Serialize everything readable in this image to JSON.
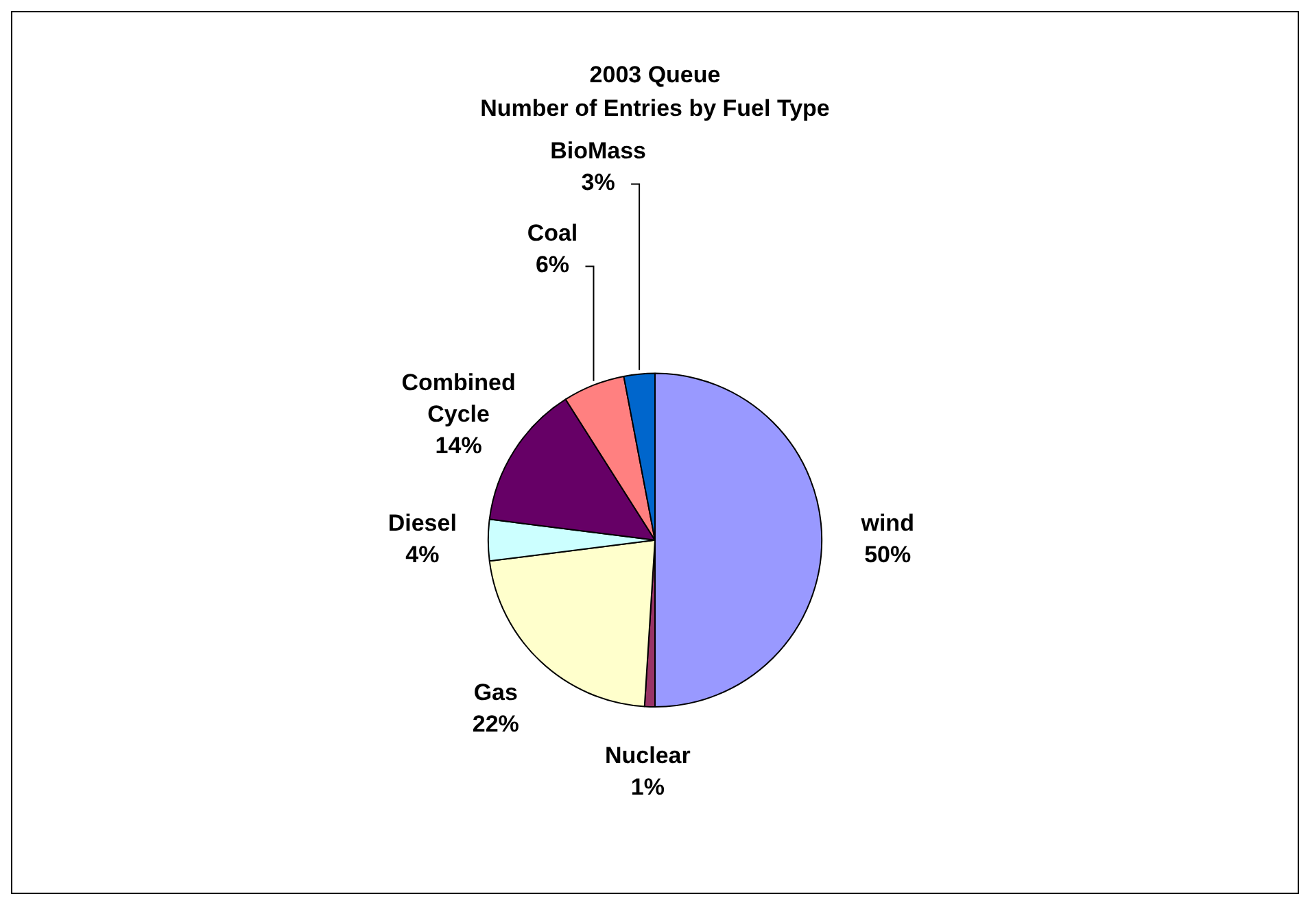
{
  "chart_data": {
    "type": "pie",
    "title": "2003 Queue",
    "subtitle": "Number of Entries by Fuel Type",
    "categories": [
      "wind",
      "Nuclear",
      "Gas",
      "Diesel",
      "Combined Cycle",
      "Coal",
      "BioMass"
    ],
    "values": [
      50,
      1,
      22,
      4,
      14,
      6,
      3
    ],
    "colors": [
      "#9999ff",
      "#993366",
      "#ffffcc",
      "#ccffff",
      "#660066",
      "#ff8080",
      "#0066cc"
    ],
    "value_labels": [
      "50%",
      "1%",
      "22%",
      "4%",
      "14%",
      "6%",
      "3%"
    ],
    "legend": false
  }
}
